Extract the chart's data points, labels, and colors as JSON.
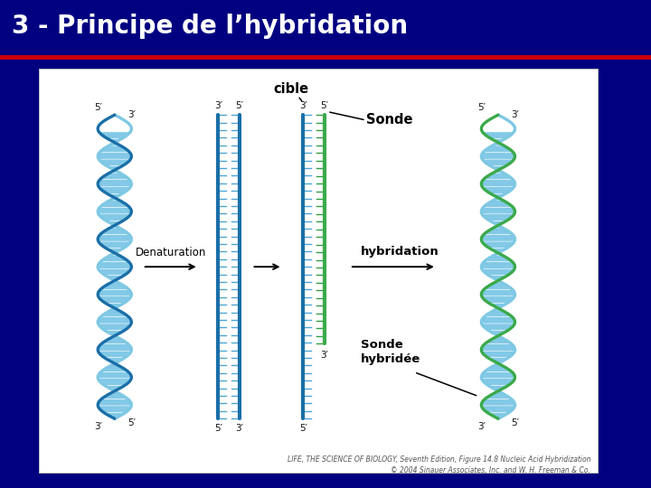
{
  "title": "3 - Principe de l’hybridation",
  "title_color": "#ffffff",
  "title_bg_color": "#000080",
  "title_bar_color": "#cc0000",
  "slide_bg_color": "#000080",
  "content_bg_color": "#ffffff",
  "title_fontsize": 20,
  "content_label": "cible",
  "label_sonde": "Sonde",
  "label_hybridation": "hybridation",
  "label_sonde_hybridee": "Sonde\nhybridée",
  "label_denaturation": "Denaturation",
  "dna_blue_light": "#7ec8e3",
  "dna_blue_mid": "#4da6d6",
  "dna_blue_dark": "#1a6fa8",
  "dna_green": "#3aaa4a",
  "dna_green_dark": "#1a7a2e",
  "brick_blue": "#5ab8e0",
  "brick_green": "#2e9e40",
  "caption_text": "LIFE, THE SCIENCE OF BIOLOGY, Seventh Edition, Figure 14.8 Nucleic Acid Hybridization\n© 2004 Sinauer Associates, Inc. and W. H. Freeman & Co.",
  "caption_fontsize": 5.5
}
